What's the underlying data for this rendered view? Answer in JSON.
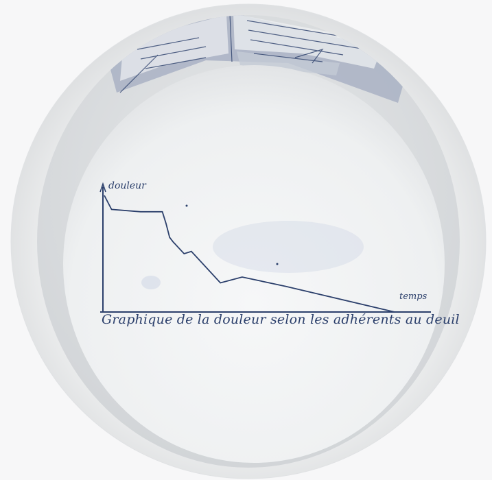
{
  "photo": {
    "subject": "porcelain bowl",
    "glaze_color": "#eef0f0",
    "print_color": "#2b3f6b",
    "band_color": "#a9b2c4"
  },
  "chart_data": {
    "type": "line",
    "title": "Graphique de la douleur selon les adhérents au deuil",
    "xlabel": "temps",
    "ylabel": "douleur",
    "grid": false,
    "x": [
      0,
      1,
      5,
      8,
      8.5,
      9,
      9.5,
      11,
      12,
      16,
      19,
      25,
      40
    ],
    "y": [
      100,
      88,
      86,
      86,
      76,
      64,
      60,
      50,
      52,
      25,
      30,
      22,
      0
    ],
    "series": [
      {
        "values": [
          100,
          88,
          86,
          86,
          76,
          64,
          60,
          50,
          52,
          25,
          30,
          22,
          0
        ]
      }
    ]
  }
}
